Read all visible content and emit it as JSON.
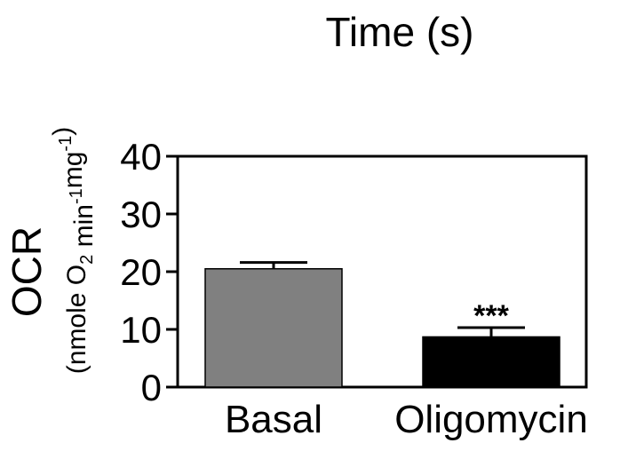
{
  "header": {
    "title": "Time (s)"
  },
  "chart_data": {
    "type": "bar",
    "categories": [
      "Basal",
      "Oligomycin"
    ],
    "values": [
      20.5,
      8.7
    ],
    "error": [
      1.1,
      1.6
    ],
    "colors": [
      "#808080",
      "#000000"
    ],
    "significance": [
      "",
      "***"
    ],
    "ylabel": "OCR",
    "ylabel_units": "(nmole O2 min-1mg-1)",
    "ylim": [
      0,
      40
    ],
    "yticks": [
      0,
      10,
      20,
      30,
      40
    ],
    "grid": false
  }
}
